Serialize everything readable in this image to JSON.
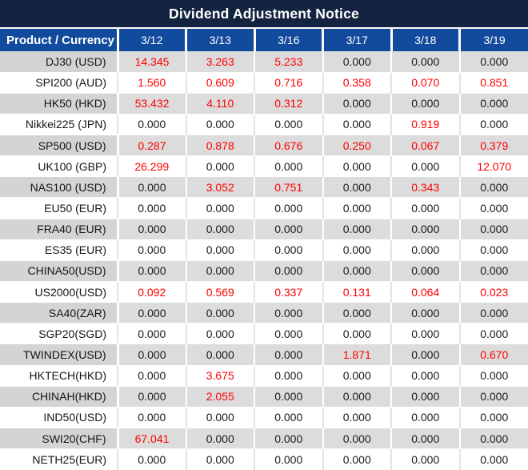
{
  "title": "Dividend Adjustment Notice",
  "colors": {
    "title_bg": "#142440",
    "header_bg": "#124a9d",
    "header_text": "#ffffff",
    "stripe_bg": "#dcdcdc",
    "stripe_label_bg": "#d4d4d4",
    "plain_bg": "#ffffff",
    "value_zero": "#1a1a1a",
    "value_nonzero": "#fe0000"
  },
  "chart_data": {
    "type": "table",
    "title": "Dividend Adjustment Notice",
    "columns": [
      "Product / Currency",
      "3/12",
      "3/13",
      "3/16",
      "3/17",
      "3/18",
      "3/19"
    ],
    "rows": [
      {
        "product": "DJ30 (USD)",
        "values": [
          "14.345",
          "3.263",
          "5.233",
          "0.000",
          "0.000",
          "0.000"
        ]
      },
      {
        "product": "SPI200 (AUD)",
        "values": [
          "1.560",
          "0.609",
          "0.716",
          "0.358",
          "0.070",
          "0.851"
        ]
      },
      {
        "product": "HK50 (HKD)",
        "values": [
          "53.432",
          "4.110",
          "0.312",
          "0.000",
          "0.000",
          "0.000"
        ]
      },
      {
        "product": "Nikkei225 (JPN)",
        "values": [
          "0.000",
          "0.000",
          "0.000",
          "0.000",
          "0.919",
          "0.000"
        ]
      },
      {
        "product": "SP500 (USD)",
        "values": [
          "0.287",
          "0.878",
          "0.676",
          "0.250",
          "0.067",
          "0.379"
        ]
      },
      {
        "product": "UK100 (GBP)",
        "values": [
          "26.299",
          "0.000",
          "0.000",
          "0.000",
          "0.000",
          "12.070"
        ]
      },
      {
        "product": "NAS100 (USD)",
        "values": [
          "0.000",
          "3.052",
          "0.751",
          "0.000",
          "0.343",
          "0.000"
        ]
      },
      {
        "product": "EU50 (EUR)",
        "values": [
          "0.000",
          "0.000",
          "0.000",
          "0.000",
          "0.000",
          "0.000"
        ]
      },
      {
        "product": "FRA40 (EUR)",
        "values": [
          "0.000",
          "0.000",
          "0.000",
          "0.000",
          "0.000",
          "0.000"
        ]
      },
      {
        "product": "ES35 (EUR)",
        "values": [
          "0.000",
          "0.000",
          "0.000",
          "0.000",
          "0.000",
          "0.000"
        ]
      },
      {
        "product": "CHINA50(USD)",
        "values": [
          "0.000",
          "0.000",
          "0.000",
          "0.000",
          "0.000",
          "0.000"
        ]
      },
      {
        "product": "US2000(USD)",
        "values": [
          "0.092",
          "0.569",
          "0.337",
          "0.131",
          "0.064",
          "0.023"
        ]
      },
      {
        "product": "SA40(ZAR)",
        "values": [
          "0.000",
          "0.000",
          "0.000",
          "0.000",
          "0.000",
          "0.000"
        ]
      },
      {
        "product": "SGP20(SGD)",
        "values": [
          "0.000",
          "0.000",
          "0.000",
          "0.000",
          "0.000",
          "0.000"
        ]
      },
      {
        "product": "TWINDEX(USD)",
        "values": [
          "0.000",
          "0.000",
          "0.000",
          "1.871",
          "0.000",
          "0.670"
        ]
      },
      {
        "product": "HKTECH(HKD)",
        "values": [
          "0.000",
          "3.675",
          "0.000",
          "0.000",
          "0.000",
          "0.000"
        ]
      },
      {
        "product": "CHINAH(HKD)",
        "values": [
          "0.000",
          "2.055",
          "0.000",
          "0.000",
          "0.000",
          "0.000"
        ]
      },
      {
        "product": "IND50(USD)",
        "values": [
          "0.000",
          "0.000",
          "0.000",
          "0.000",
          "0.000",
          "0.000"
        ]
      },
      {
        "product": "SWI20(CHF)",
        "values": [
          "67.041",
          "0.000",
          "0.000",
          "0.000",
          "0.000",
          "0.000"
        ]
      },
      {
        "product": "NETH25(EUR)",
        "values": [
          "0.000",
          "0.000",
          "0.000",
          "0.000",
          "0.000",
          "0.000"
        ]
      }
    ]
  }
}
